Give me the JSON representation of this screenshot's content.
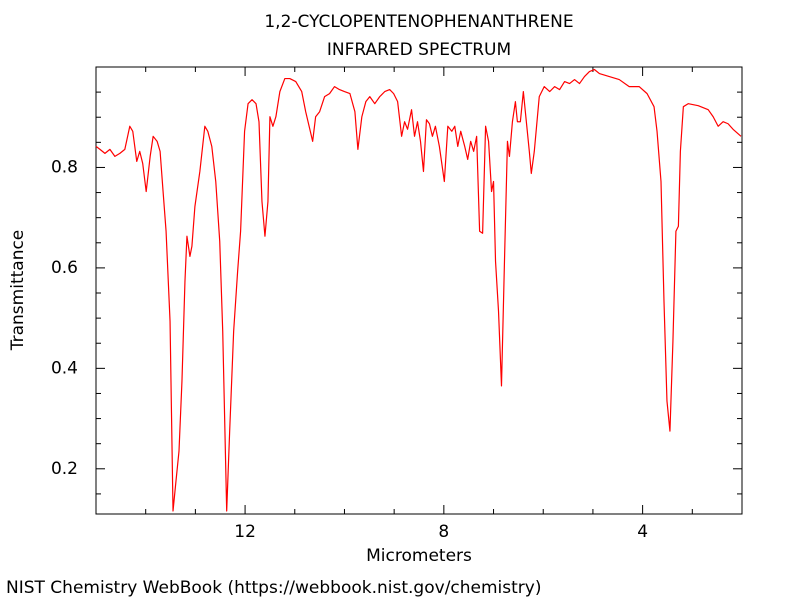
{
  "chart_data": {
    "type": "line",
    "title": "1,2-CYCLOPENTENOPHENANTHRENE",
    "subtitle": "INFRARED SPECTRUM",
    "x_label": "Micrometers",
    "y_label": "Transmittance",
    "source": "NIST Chemistry WebBook (https://webbook.nist.gov/chemistry)",
    "color": "#ff0000",
    "xlim": [
      15,
      2
    ],
    "ylim": [
      0.11,
      1.0
    ],
    "xticks": [
      12,
      8,
      4
    ],
    "yticks": [
      0.2,
      0.4,
      0.6,
      0.8
    ],
    "xminorticks": [
      14,
      13,
      11,
      10,
      9,
      7,
      6,
      5,
      3
    ],
    "yminorticks": [
      0.15,
      0.25,
      0.3,
      0.35,
      0.45,
      0.5,
      0.55,
      0.65,
      0.7,
      0.75,
      0.85,
      0.9,
      0.95
    ],
    "x": [
      15.0,
      14.92,
      14.82,
      14.72,
      14.62,
      14.52,
      14.42,
      14.32,
      14.26,
      14.18,
      14.12,
      14.06,
      13.99,
      13.91,
      13.85,
      13.77,
      13.71,
      13.65,
      13.59,
      13.51,
      13.45,
      13.39,
      13.33,
      13.27,
      13.21,
      13.17,
      13.11,
      13.07,
      13.01,
      12.91,
      12.81,
      12.75,
      12.67,
      12.59,
      12.51,
      12.45,
      12.37,
      12.31,
      12.23,
      12.15,
      12.09,
      12.01,
      11.94,
      11.86,
      11.78,
      11.72,
      11.66,
      11.6,
      11.54,
      11.5,
      11.44,
      11.38,
      11.3,
      11.2,
      11.1,
      10.98,
      10.86,
      10.78,
      10.64,
      10.58,
      10.5,
      10.4,
      10.3,
      10.2,
      10.1,
      10.0,
      9.89,
      9.79,
      9.73,
      9.65,
      9.57,
      9.49,
      9.39,
      9.29,
      9.19,
      9.09,
      9.01,
      8.93,
      8.85,
      8.79,
      8.73,
      8.65,
      8.59,
      8.53,
      8.47,
      8.41,
      8.35,
      8.29,
      8.23,
      8.17,
      8.09,
      7.99,
      7.92,
      7.84,
      7.78,
      7.72,
      7.66,
      7.58,
      7.52,
      7.46,
      7.4,
      7.34,
      7.28,
      7.22,
      7.16,
      7.1,
      7.04,
      7.0,
      6.96,
      6.9,
      6.84,
      6.78,
      6.72,
      6.68,
      6.62,
      6.56,
      6.52,
      6.46,
      6.4,
      6.36,
      6.28,
      6.24,
      6.18,
      6.08,
      5.98,
      5.87,
      5.77,
      5.67,
      5.57,
      5.47,
      5.37,
      5.27,
      5.17,
      5.07,
      4.97,
      4.87,
      4.67,
      4.47,
      4.27,
      4.07,
      3.91,
      3.77,
      3.71,
      3.63,
      3.57,
      3.51,
      3.45,
      3.39,
      3.33,
      3.28,
      3.24,
      3.18,
      3.08,
      2.88,
      2.68,
      2.58,
      2.48,
      2.38,
      2.28,
      2.18,
      2.02
    ],
    "values": [
      0.842,
      0.836,
      0.828,
      0.836,
      0.822,
      0.828,
      0.836,
      0.882,
      0.872,
      0.812,
      0.832,
      0.808,
      0.752,
      0.822,
      0.862,
      0.852,
      0.832,
      0.752,
      0.673,
      0.494,
      0.116,
      0.176,
      0.235,
      0.375,
      0.573,
      0.663,
      0.623,
      0.643,
      0.722,
      0.792,
      0.882,
      0.872,
      0.842,
      0.772,
      0.653,
      0.474,
      0.116,
      0.275,
      0.474,
      0.593,
      0.673,
      0.872,
      0.927,
      0.935,
      0.927,
      0.891,
      0.732,
      0.663,
      0.732,
      0.901,
      0.882,
      0.901,
      0.951,
      0.977,
      0.977,
      0.971,
      0.951,
      0.911,
      0.852,
      0.901,
      0.911,
      0.941,
      0.947,
      0.961,
      0.955,
      0.951,
      0.947,
      0.911,
      0.836,
      0.901,
      0.931,
      0.941,
      0.927,
      0.941,
      0.951,
      0.955,
      0.947,
      0.931,
      0.862,
      0.891,
      0.876,
      0.915,
      0.862,
      0.891,
      0.852,
      0.792,
      0.895,
      0.887,
      0.862,
      0.882,
      0.842,
      0.772,
      0.882,
      0.872,
      0.882,
      0.842,
      0.872,
      0.842,
      0.816,
      0.852,
      0.832,
      0.862,
      0.673,
      0.669,
      0.882,
      0.852,
      0.752,
      0.772,
      0.613,
      0.514,
      0.365,
      0.613,
      0.852,
      0.822,
      0.891,
      0.931,
      0.891,
      0.891,
      0.951,
      0.911,
      0.832,
      0.788,
      0.832,
      0.941,
      0.961,
      0.951,
      0.961,
      0.955,
      0.971,
      0.967,
      0.975,
      0.967,
      0.981,
      0.991,
      0.995,
      0.987,
      0.981,
      0.975,
      0.961,
      0.961,
      0.947,
      0.921,
      0.872,
      0.772,
      0.534,
      0.335,
      0.275,
      0.454,
      0.673,
      0.683,
      0.832,
      0.921,
      0.927,
      0.923,
      0.915,
      0.901,
      0.882,
      0.891,
      0.887,
      0.876,
      0.862
    ]
  }
}
